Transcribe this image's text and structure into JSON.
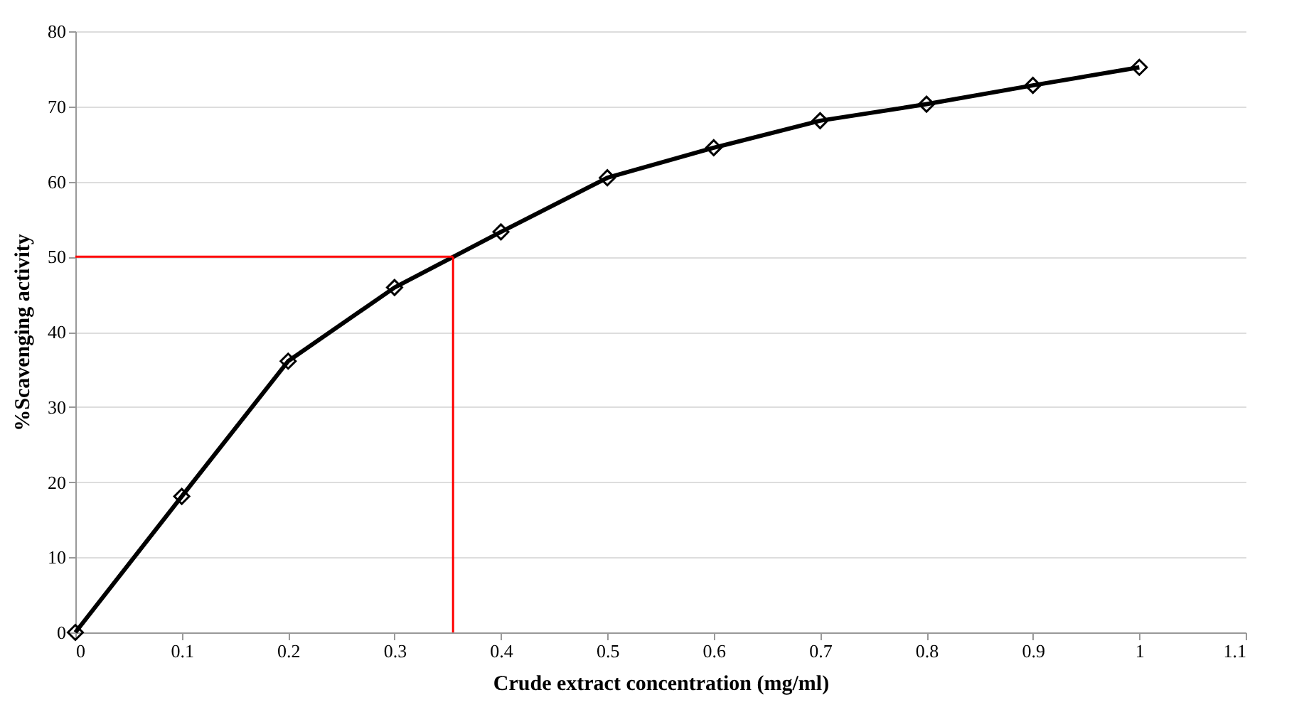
{
  "chart_data": {
    "type": "line",
    "xlabel": "Crude extract concentration (mg/ml)",
    "ylabel": "%Scavenging activity",
    "x": [
      0,
      0.1,
      0.2,
      0.3,
      0.4,
      0.5,
      0.6,
      0.7,
      0.8,
      0.9,
      1
    ],
    "series": [
      {
        "color": "#000000",
        "values": [
          0,
          18.1,
          36.1,
          45.9,
          53.3,
          60.5,
          64.5,
          68.1,
          70.3,
          72.8,
          75.2
        ]
      }
    ],
    "xlim": [
      0,
      1.1
    ],
    "xticks": [
      0,
      0.1,
      0.2,
      0.3,
      0.4,
      0.5,
      0.6,
      0.7,
      0.8,
      0.9,
      1,
      1.1
    ],
    "ylim": [
      0,
      80
    ],
    "yticks": [
      0,
      10,
      20,
      30,
      40,
      50,
      60,
      70,
      80
    ],
    "grid": "y",
    "marker": "diamond",
    "line_style": "solid",
    "ref_lines": [
      {
        "axis": "y",
        "value": 50,
        "color": "#ff0000"
      },
      {
        "axis": "x",
        "value": 0.355,
        "color": "#ff0000"
      }
    ]
  }
}
